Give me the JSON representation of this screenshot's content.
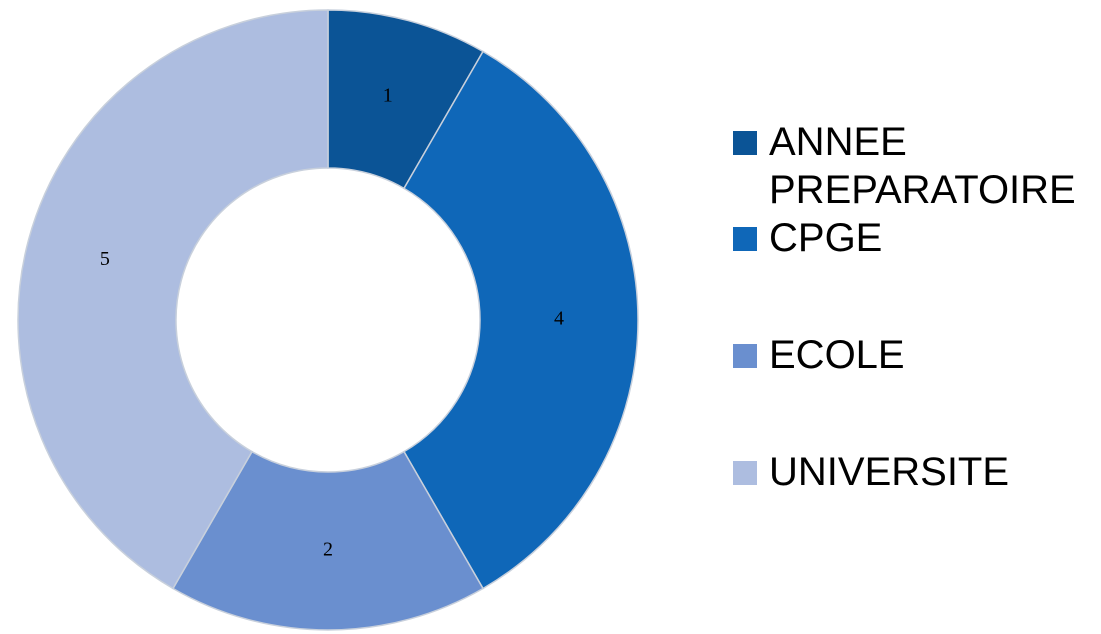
{
  "chart_data": {
    "type": "donut",
    "categories": [
      "ANNEE PREPARATOIRE",
      "CPGE",
      "ECOLE",
      "UNIVERSITE"
    ],
    "values": [
      1,
      4,
      2,
      5
    ],
    "colors": [
      "#0b5496",
      "#0f67b8",
      "#6a8fcf",
      "#adbde0"
    ],
    "legend": "right"
  }
}
